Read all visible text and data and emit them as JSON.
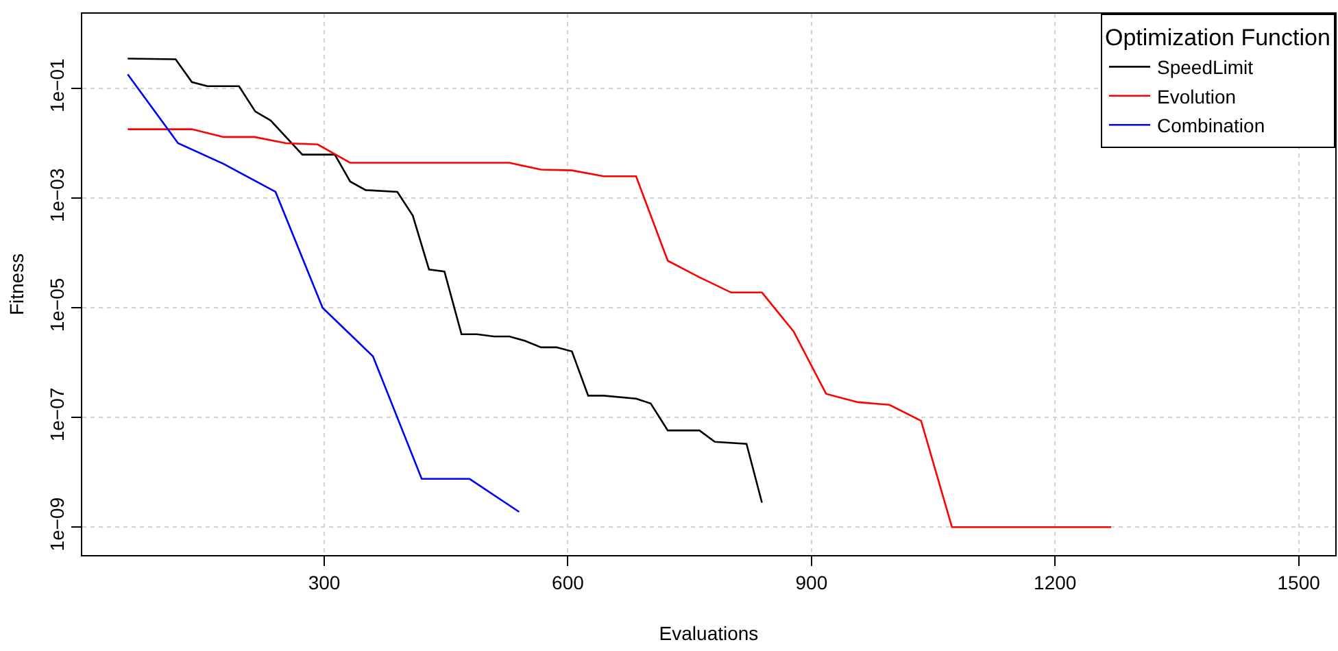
{
  "chart_data": {
    "type": "line",
    "xlabel": "Evaluations",
    "ylabel": "Fitness",
    "legend_title": "Optimization Function",
    "log": "y",
    "grid": true,
    "legend": "top right",
    "marker": "none",
    "line_style": "solid",
    "xlim": [
      2,
      1545
    ],
    "xticks": [
      300,
      600,
      900,
      1200,
      1500
    ],
    "ylim": [
      3.1e-10,
      2.3
    ],
    "yticks": [
      {
        "value": 0.1,
        "label": "1e−01"
      },
      {
        "value": 0.001,
        "label": "1e−03"
      },
      {
        "value": 1e-05,
        "label": "1e−05"
      },
      {
        "value": 1e-07,
        "label": "1e−07"
      },
      {
        "value": 1e-09,
        "label": "1e−09"
      }
    ],
    "series": [
      {
        "name": "SpeedLimit",
        "color": "#000000",
        "x": [
          58,
          117,
          137,
          156,
          195,
          215,
          234,
          273,
          313,
          332,
          351,
          390,
          409,
          429,
          448,
          469,
          488,
          509,
          528,
          547,
          567,
          586,
          605,
          625,
          644,
          684,
          702,
          723,
          762,
          781,
          820,
          839
        ],
        "values": [
          0.35,
          0.34,
          0.13,
          0.11,
          0.11,
          0.038,
          0.026,
          0.0062,
          0.0062,
          0.002,
          0.0014,
          0.0013,
          0.00048,
          5e-05,
          4.6e-05,
          3.3e-06,
          3.3e-06,
          3e-06,
          3e-06,
          2.5e-06,
          1.9e-06,
          1.9e-06,
          1.6e-06,
          2.5e-07,
          2.5e-07,
          2.2e-07,
          1.8e-07,
          5.8e-08,
          5.8e-08,
          3.6e-08,
          3.3e-08,
          2.8e-09
        ]
      },
      {
        "name": "Evolution",
        "color": "#ff0000",
        "x": [
          58,
          137,
          176,
          214,
          253,
          292,
          332,
          528,
          567,
          605,
          644,
          684,
          723,
          762,
          801,
          839,
          878,
          918,
          957,
          996,
          1035,
          1073,
          1269
        ],
        "values": [
          0.018,
          0.018,
          0.013,
          0.013,
          0.01,
          0.0095,
          0.0044,
          0.0044,
          0.0033,
          0.0032,
          0.0025,
          0.0025,
          7.2e-05,
          3.6e-05,
          1.9e-05,
          1.9e-05,
          3.7e-06,
          2.7e-07,
          1.9e-07,
          1.7e-07,
          8.7e-08,
          1e-09,
          1e-09
        ]
      },
      {
        "name": "Combination",
        "color": "#0000ff",
        "x": [
          58,
          120,
          176,
          240,
          298,
          360,
          420,
          479,
          540
        ],
        "values": [
          0.18,
          0.01,
          0.0042,
          0.0013,
          1e-05,
          1.3e-06,
          7.6e-09,
          7.6e-09,
          1.9e-09
        ]
      }
    ]
  }
}
